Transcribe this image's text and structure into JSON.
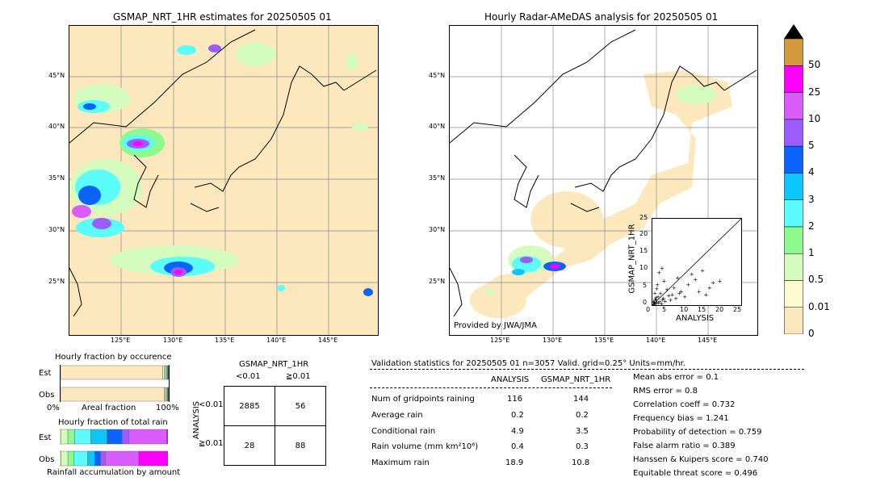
{
  "left_map": {
    "title": "GSMAP_NRT_1HR estimates for 20250505 01",
    "lon_ticks": [
      "125°E",
      "130°E",
      "135°E",
      "140°E",
      "145°E"
    ],
    "lat_ticks": [
      "45°N",
      "40°N",
      "35°N",
      "30°N",
      "25°N"
    ]
  },
  "right_map": {
    "title": "Hourly Radar-AMeDAS analysis for 20250505 01",
    "lon_ticks": [
      "125°E",
      "130°E",
      "135°E",
      "140°E",
      "145°E"
    ],
    "lat_ticks": [
      "45°N",
      "40°N",
      "35°N",
      "30°N",
      "25°N"
    ],
    "credit": "Provided by JWA/JMA"
  },
  "colorbar": {
    "labels": [
      "0",
      "0.01",
      "0.5",
      "1",
      "2",
      "3",
      "4",
      "5",
      "10",
      "25",
      "50"
    ],
    "colors": [
      "#fde8bd",
      "#fffbd0",
      "#d5fcbf",
      "#8ef98d",
      "#5cfcfc",
      "#0dc7fc",
      "#0a64fc",
      "#9a5cfc",
      "#da5cfc",
      "#fc00fc",
      "#d29a3a"
    ]
  },
  "chart_data": [
    {
      "type": "scatter",
      "xlabel": "ANALYSIS",
      "ylabel": "GSMAP_NRT_1HR",
      "xlim": [
        0,
        25
      ],
      "ylim": [
        0,
        25
      ],
      "xticks": [
        "0",
        "5",
        "10",
        "15",
        "20",
        "25"
      ],
      "yticks": [
        "0",
        "5",
        "10",
        "15",
        "20",
        "25"
      ],
      "points": [
        [
          0.3,
          0.2
        ],
        [
          0.5,
          0.6
        ],
        [
          0.8,
          0.4
        ],
        [
          1,
          1.5
        ],
        [
          1.2,
          0.8
        ],
        [
          1.5,
          2.5
        ],
        [
          2,
          1
        ],
        [
          2.2,
          3.4
        ],
        [
          2.5,
          0.5
        ],
        [
          3,
          2
        ],
        [
          3.5,
          1.2
        ],
        [
          4,
          4.5
        ],
        [
          4.5,
          2.8
        ],
        [
          5,
          1.5
        ],
        [
          5.5,
          3
        ],
        [
          6,
          5
        ],
        [
          6.5,
          2
        ],
        [
          7,
          8
        ],
        [
          7.5,
          3.5
        ],
        [
          8,
          4
        ],
        [
          9,
          2.5
        ],
        [
          10,
          6
        ],
        [
          11,
          9
        ],
        [
          12,
          7.5
        ],
        [
          13,
          4
        ],
        [
          14,
          10
        ],
        [
          15,
          3
        ],
        [
          16,
          5
        ],
        [
          17,
          6.5
        ],
        [
          18.9,
          7
        ],
        [
          0.2,
          1
        ],
        [
          0.6,
          3.5
        ],
        [
          1.3,
          6
        ],
        [
          1.8,
          9.5
        ],
        [
          2.6,
          10.8
        ],
        [
          3.2,
          7
        ],
        [
          1.1,
          4.8
        ],
        [
          0.9,
          2.2
        ],
        [
          0.4,
          0.9
        ],
        [
          0.7,
          1.8
        ],
        [
          1.6,
          0.7
        ],
        [
          2.8,
          1.6
        ]
      ]
    },
    {
      "type": "bar",
      "title": "Hourly fraction by occurence",
      "categories": [
        "Est",
        "Obs"
      ],
      "xlabel": "Areal fraction",
      "xticks": [
        "0%",
        "100%"
      ],
      "series_colors": [
        "#fde8bd",
        "#fffbd0",
        "#d5fcbf",
        "#8ef98d",
        "#5cfcfc",
        "#0dc7fc",
        "#0a64fc",
        "#9a5cfc"
      ],
      "values": [
        [
          0.944,
          0.014,
          0.012,
          0.01,
          0.008,
          0.006,
          0.004,
          0.002
        ],
        [
          0.959,
          0.01,
          0.009,
          0.008,
          0.006,
          0.004,
          0.003,
          0.001
        ]
      ]
    },
    {
      "type": "bar",
      "title": "Hourly fraction of total rain",
      "categories": [
        "Est",
        "Obs"
      ],
      "xlabel": "Rainfall accumulation by amount",
      "series_colors": [
        "#fffbd0",
        "#d5fcbf",
        "#8ef98d",
        "#5cfcfc",
        "#0dc7fc",
        "#0a64fc",
        "#9a5cfc",
        "#da5cfc",
        "#fc00fc"
      ],
      "values": [
        [
          0.01,
          0.05,
          0.05,
          0.12,
          0.12,
          0.11,
          0.05,
          0.28,
          0.01
        ],
        [
          0.01,
          0.06,
          0.05,
          0.12,
          0.06,
          0.05,
          0.04,
          0.29,
          0.25
        ]
      ]
    }
  ],
  "contingency": {
    "title": "GSMAP_NRT_1HR",
    "col_lt": "<0.01",
    "col_ge": "≧0.01",
    "row_axis": "ANALYSIS",
    "row_lt": "<0.01",
    "row_ge": "≧0.01",
    "a": "2885",
    "b": "56",
    "c": "28",
    "d": "88"
  },
  "validation": {
    "header": "Validation statistics for 20250505 01  n=3057 Valid. grid=0.25° Units=mm/hr.",
    "col_analysis": "ANALYSIS",
    "col_gsmap": "GSMAP_NRT_1HR",
    "rows": [
      {
        "label": "Num of gridpoints raining",
        "analysis": "116",
        "gsmap": "144"
      },
      {
        "label": "Average rain",
        "analysis": "0.2",
        "gsmap": "0.2"
      },
      {
        "label": "Conditional rain",
        "analysis": "4.9",
        "gsmap": "3.5"
      },
      {
        "label": "Rain volume (mm km²10⁶)",
        "analysis": "0.4",
        "gsmap": "0.3"
      },
      {
        "label": "Maximum rain",
        "analysis": "18.9",
        "gsmap": "10.8"
      }
    ],
    "scores": [
      "Mean abs error =    0.1",
      "RMS error =    0.8",
      "Correlation coeff =  0.732",
      "Frequency bias =  1.241",
      "Probability of detection =  0.759",
      "False alarm ratio =  0.389",
      "Hanssen & Kuipers score =  0.740",
      "Equitable threat score =  0.496"
    ]
  }
}
